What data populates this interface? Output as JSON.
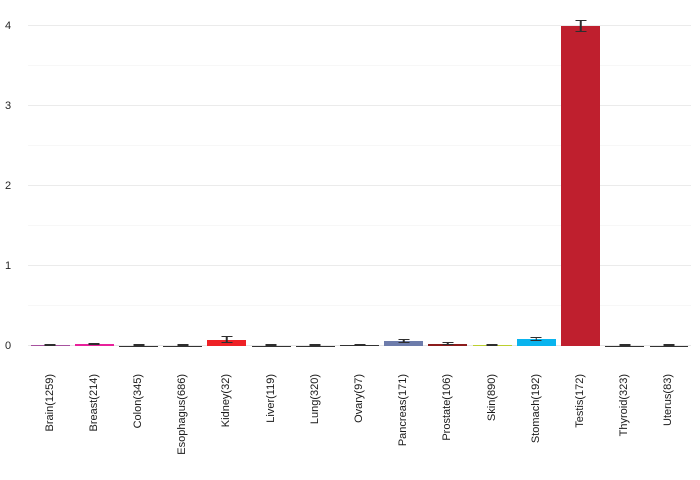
{
  "chart_data": {
    "type": "bar",
    "title": "",
    "xlabel": "",
    "ylabel": "",
    "categories": [
      "Brain(1259)",
      "Breast(214)",
      "Colon(345)",
      "Esophagus(686)",
      "Kidney(32)",
      "Liver(119)",
      "Lung(320)",
      "Ovary(97)",
      "Pancreas(171)",
      "Prostate(106)",
      "Skin(890)",
      "Stomach(192)",
      "Testis(172)",
      "Thyroid(323)",
      "Uterus(83)"
    ],
    "values": [
      0.012,
      0.025,
      0.004,
      0.006,
      0.08,
      0.006,
      0.005,
      0.008,
      0.062,
      0.03,
      0.014,
      0.09,
      4.0,
      0.005,
      0.004
    ],
    "errors": [
      0.006,
      0.012,
      0.006,
      0.006,
      0.04,
      0.006,
      0.005,
      0.008,
      0.028,
      0.015,
      0.01,
      0.028,
      0.08,
      0.006,
      0.005
    ],
    "colors": [
      "#a7529f",
      "#e8219b",
      "#333333",
      "#333333",
      "#ee2126",
      "#333333",
      "#333333",
      "#333333",
      "#6d7cab",
      "#8c1c1c",
      "#bcd02f",
      "#0ab4ee",
      "#bf1f2e",
      "#333333",
      "#333333"
    ],
    "error_bar_color": "#2e2e2e",
    "ylim": [
      0,
      4.3
    ],
    "yticks": [
      "0",
      "1",
      "2",
      "3",
      "4"
    ],
    "minor_grid_step": 0.5,
    "grid": true,
    "legend": false
  }
}
